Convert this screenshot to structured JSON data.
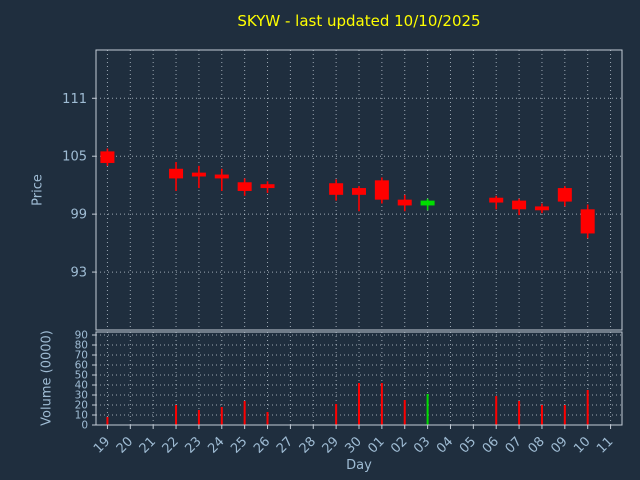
{
  "title": "SKYW - last updated 10/10/2025",
  "colors": {
    "background": "#1f2e3e",
    "title": "#ffff00",
    "axis_label": "#9fbcd4",
    "frame": "#c3ccd6",
    "up": "#00dd00",
    "down": "#ff0000"
  },
  "chart_data": {
    "type": "candlestick_with_volume",
    "title": "SKYW - last updated 10/10/2025",
    "xlabel": "Day",
    "price_ylabel": "Price",
    "volume_ylabel": "Volume (0000)",
    "x_ticklabels": [
      "19",
      "20",
      "21",
      "22",
      "23",
      "24",
      "25",
      "26",
      "27",
      "28",
      "29",
      "30",
      "01",
      "02",
      "03",
      "04",
      "05",
      "06",
      "07",
      "08",
      "09",
      "10",
      "11"
    ],
    "price_yticks": [
      93,
      99,
      105,
      111
    ],
    "price_ylim": [
      87,
      116
    ],
    "volume_yticks": [
      0,
      10,
      20,
      30,
      40,
      50,
      60,
      70,
      80,
      90
    ],
    "volume_ylim": [
      0,
      93
    ],
    "grid": "dotted",
    "legend": "none",
    "candles": [
      {
        "day": "19",
        "open": 105.5,
        "high": 105.8,
        "low": 104.0,
        "close": 104.3,
        "volume": 8
      },
      {
        "day": "22",
        "open": 103.7,
        "high": 104.4,
        "low": 101.4,
        "close": 102.7,
        "volume": 20
      },
      {
        "day": "23",
        "open": 103.3,
        "high": 104.0,
        "low": 101.7,
        "close": 102.9,
        "volume": 15
      },
      {
        "day": "24",
        "open": 103.1,
        "high": 103.7,
        "low": 101.4,
        "close": 102.7,
        "volume": 18
      },
      {
        "day": "25",
        "open": 102.3,
        "high": 102.7,
        "low": 100.9,
        "close": 101.4,
        "volume": 24
      },
      {
        "day": "26",
        "open": 102.1,
        "high": 102.4,
        "low": 101.2,
        "close": 101.7,
        "volume": 13
      },
      {
        "day": "29",
        "open": 102.2,
        "high": 102.6,
        "low": 100.4,
        "close": 101.0,
        "volume": 21
      },
      {
        "day": "30",
        "open": 101.7,
        "high": 101.9,
        "low": 99.3,
        "close": 101.0,
        "volume": 42
      },
      {
        "day": "01",
        "open": 102.5,
        "high": 102.8,
        "low": 100.1,
        "close": 100.5,
        "volume": 42
      },
      {
        "day": "02",
        "open": 100.5,
        "high": 101.0,
        "low": 99.3,
        "close": 99.9,
        "volume": 25
      },
      {
        "day": "03",
        "open": 99.9,
        "high": 100.6,
        "low": 99.4,
        "close": 100.4,
        "volume": 31
      },
      {
        "day": "06",
        "open": 100.7,
        "high": 100.9,
        "low": 99.5,
        "close": 100.2,
        "volume": 29
      },
      {
        "day": "07",
        "open": 100.4,
        "high": 100.6,
        "low": 98.9,
        "close": 99.5,
        "volume": 24
      },
      {
        "day": "08",
        "open": 99.8,
        "high": 100.1,
        "low": 99.1,
        "close": 99.4,
        "volume": 20
      },
      {
        "day": "09",
        "open": 101.7,
        "high": 101.9,
        "low": 99.8,
        "close": 100.3,
        "volume": 20
      },
      {
        "day": "10",
        "open": 99.5,
        "high": 100.0,
        "low": 96.5,
        "close": 97.0,
        "volume": 35
      }
    ]
  }
}
